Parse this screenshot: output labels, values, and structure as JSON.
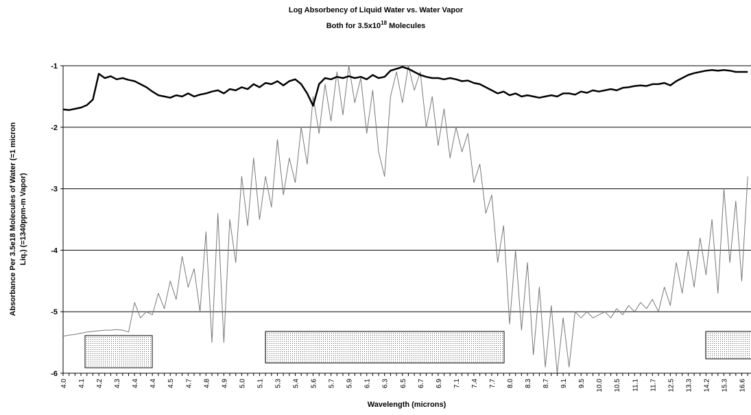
{
  "chart_data": {
    "type": "line",
    "title": "Log Absorbency of Liquid Water vs. Water Vapor",
    "subtitle": [
      "Both for 3.5x10",
      "18",
      " Molecules"
    ],
    "x_label": "Wavelength (microns)",
    "y_label": [
      "Absorbance Per 3.5e18 Molecules of Water (=1 micron",
      "Liq.) (=1340ppm-m Vapor)"
    ],
    "ylim": [
      -6,
      -1
    ],
    "yticks": [
      -1,
      -2,
      -3,
      -4,
      -5,
      -6
    ],
    "grid": true,
    "categories": [
      "4.0",
      null,
      null,
      "4.1",
      null,
      null,
      "4.2",
      null,
      null,
      "4.3",
      null,
      null,
      "4.4",
      null,
      null,
      "4.4",
      null,
      null,
      "4.5",
      null,
      null,
      "4.7",
      null,
      null,
      "4.8",
      null,
      null,
      "4.9",
      null,
      null,
      "5.0",
      null,
      null,
      "5.1",
      null,
      null,
      "5.3",
      null,
      null,
      "5.4",
      null,
      null,
      "5.6",
      null,
      null,
      "5.7",
      null,
      null,
      "5.9",
      null,
      null,
      "6.1",
      null,
      null,
      "6.3",
      null,
      null,
      "6.5",
      null,
      null,
      "6.7",
      null,
      null,
      "6.9",
      null,
      null,
      "7.1",
      null,
      null,
      "7.4",
      null,
      null,
      "7.7",
      null,
      null,
      "8.0",
      null,
      null,
      "8.3",
      null,
      null,
      "8.7",
      null,
      null,
      "9.1",
      null,
      null,
      "9.5",
      null,
      null,
      "10.0",
      null,
      null,
      "10.5",
      null,
      null,
      "11.1",
      null,
      null,
      "11.7",
      null,
      null,
      "12.5",
      null,
      null,
      "13.3",
      null,
      null,
      "14.2",
      null,
      null,
      "15.3",
      null,
      null,
      "16.6",
      null
    ],
    "series": [
      {
        "color": "#777777",
        "width": 1,
        "values": [
          -5.4,
          -5.38,
          -5.37,
          -5.35,
          -5.33,
          -5.32,
          -5.31,
          -5.3,
          -5.3,
          -5.29,
          -5.3,
          -5.33,
          -4.85,
          -5.1,
          -5.0,
          -5.05,
          -4.7,
          -4.95,
          -4.5,
          -4.8,
          -4.1,
          -4.6,
          -4.3,
          -5.0,
          -3.7,
          -5.5,
          -3.4,
          -5.5,
          -3.5,
          -4.2,
          -2.8,
          -3.6,
          -2.5,
          -3.5,
          -2.8,
          -3.3,
          -2.2,
          -3.1,
          -2.5,
          -2.9,
          -2.0,
          -2.6,
          -1.5,
          -2.1,
          -1.3,
          -1.9,
          -1.1,
          -1.8,
          -1.0,
          -1.6,
          -1.2,
          -2.1,
          -1.4,
          -2.4,
          -2.8,
          -1.5,
          -1.1,
          -1.6,
          -1.0,
          -1.4,
          -1.1,
          -2.0,
          -1.5,
          -2.3,
          -1.7,
          -2.5,
          -2.0,
          -2.4,
          -2.1,
          -2.9,
          -2.6,
          -3.4,
          -3.1,
          -4.2,
          -3.6,
          -5.2,
          -4.0,
          -5.3,
          -4.2,
          -5.7,
          -4.6,
          -5.9,
          -4.9,
          -6.0,
          -5.1,
          -5.9,
          -5.0,
          -5.1,
          -5.0,
          -5.1,
          -5.05,
          -5.0,
          -5.1,
          -4.95,
          -5.05,
          -4.9,
          -5.0,
          -4.85,
          -4.95,
          -4.8,
          -5.0,
          -4.6,
          -4.9,
          -4.2,
          -4.7,
          -4.0,
          -4.6,
          -3.8,
          -4.4,
          -3.5,
          -4.7,
          -3.0,
          -4.2,
          -3.2,
          -4.5,
          -2.8
        ]
      },
      {
        "color": "#000000",
        "width": 2.5,
        "values": [
          -1.71,
          -1.72,
          -1.7,
          -1.68,
          -1.64,
          -1.55,
          -1.13,
          -1.2,
          -1.17,
          -1.22,
          -1.2,
          -1.23,
          -1.25,
          -1.3,
          -1.35,
          -1.42,
          -1.48,
          -1.5,
          -1.52,
          -1.48,
          -1.5,
          -1.45,
          -1.5,
          -1.47,
          -1.45,
          -1.42,
          -1.4,
          -1.45,
          -1.38,
          -1.4,
          -1.35,
          -1.38,
          -1.3,
          -1.35,
          -1.28,
          -1.3,
          -1.25,
          -1.32,
          -1.25,
          -1.22,
          -1.3,
          -1.45,
          -1.65,
          -1.3,
          -1.2,
          -1.22,
          -1.18,
          -1.2,
          -1.17,
          -1.2,
          -1.18,
          -1.22,
          -1.15,
          -1.2,
          -1.18,
          -1.08,
          -1.05,
          -1.02,
          -1.05,
          -1.1,
          -1.15,
          -1.18,
          -1.2,
          -1.2,
          -1.22,
          -1.2,
          -1.22,
          -1.25,
          -1.24,
          -1.28,
          -1.3,
          -1.35,
          -1.4,
          -1.45,
          -1.42,
          -1.48,
          -1.45,
          -1.5,
          -1.48,
          -1.5,
          -1.52,
          -1.5,
          -1.48,
          -1.5,
          -1.45,
          -1.45,
          -1.47,
          -1.42,
          -1.44,
          -1.4,
          -1.42,
          -1.4,
          -1.38,
          -1.4,
          -1.36,
          -1.35,
          -1.33,
          -1.32,
          -1.33,
          -1.3,
          -1.3,
          -1.28,
          -1.32,
          -1.25,
          -1.2,
          -1.15,
          -1.12,
          -1.1,
          -1.08,
          -1.07,
          -1.08,
          -1.07,
          -1.08,
          -1.1,
          -1.1,
          -1.1
        ]
      }
    ]
  }
}
